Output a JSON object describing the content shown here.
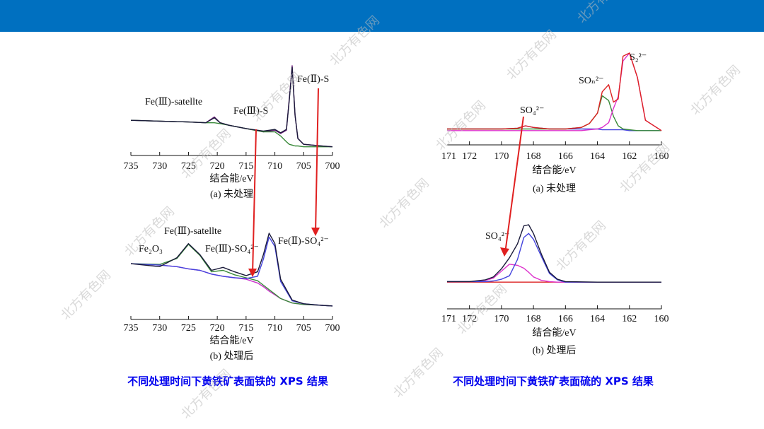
{
  "watermark": "北方有色网",
  "chart_data": [
    {
      "type": "line",
      "xlabel": "结合能/eV",
      "caption": "(a) 未处理",
      "xlim": [
        735,
        700
      ],
      "xticks": [
        735,
        730,
        725,
        720,
        715,
        710,
        705,
        700
      ],
      "annotations": [
        "Fe(Ⅲ)-satellte",
        "Fe(Ⅲ)-S",
        "Fe(Ⅱ)-S"
      ],
      "x": [
        735,
        730,
        725,
        722,
        720.5,
        719.5,
        718,
        715,
        712,
        710,
        709,
        708,
        707.5,
        707,
        706.5,
        706,
        705,
        702,
        700
      ],
      "series": [
        {
          "color": "#6a1b7a",
          "values": [
            34,
            33,
            32,
            31,
            38,
            31,
            28,
            24,
            20,
            22,
            18,
            22,
            60,
            100,
            40,
            12,
            5,
            3,
            2
          ]
        },
        {
          "color": "#3a8a3a",
          "values": [
            34,
            33,
            32,
            31,
            31,
            30,
            28,
            24,
            20,
            20,
            15,
            8,
            5,
            4,
            3,
            3,
            2,
            2,
            2
          ]
        },
        {
          "color": "#1a1a3a",
          "values": [
            34,
            33,
            32,
            31,
            37,
            31,
            28,
            24,
            21,
            23,
            19,
            23,
            58,
            98,
            40,
            12,
            5,
            3,
            2
          ]
        }
      ]
    },
    {
      "type": "line",
      "xlabel": "结合能/eV",
      "caption": "(b) 处理后",
      "xlim": [
        735,
        700
      ],
      "xticks": [
        735,
        730,
        725,
        720,
        715,
        710,
        705,
        700
      ],
      "annotations": [
        "Fe(Ⅲ)-satellte",
        "Fe₂O₃",
        "Fe(Ⅲ)-SO₄²⁻",
        "Fe(Ⅱ)-SO₄²⁻"
      ],
      "x": [
        735,
        730,
        727,
        725,
        723,
        721,
        719,
        717,
        715,
        713,
        712,
        711,
        710,
        709,
        707,
        705,
        702,
        700
      ],
      "series": [
        {
          "color": "#cc33cc",
          "values": [
            59,
            57,
            55,
            52,
            50,
            45,
            42,
            40,
            38,
            33,
            28,
            22,
            17,
            12,
            6,
            4,
            3,
            2
          ]
        },
        {
          "color": "#3a8a3a",
          "values": [
            59,
            58,
            66,
            85,
            70,
            48,
            50,
            44,
            40,
            36,
            30,
            24,
            18,
            12,
            6,
            4,
            3,
            2
          ]
        },
        {
          "color": "#4444dd",
          "values": [
            59,
            57,
            55,
            52,
            50,
            45,
            42,
            40,
            39,
            42,
            65,
            95,
            82,
            35,
            9,
            5,
            3,
            2
          ]
        },
        {
          "color": "#1a1a3a",
          "values": [
            59,
            55,
            67,
            86,
            71,
            50,
            54,
            48,
            43,
            48,
            71,
            100,
            86,
            38,
            10,
            5,
            3,
            2
          ]
        }
      ]
    },
    {
      "type": "line",
      "xlabel": "结合能/eV",
      "caption": "(a) 未处理",
      "extra_label": "171",
      "xlim": [
        173.4,
        160
      ],
      "xticks": [
        172,
        170,
        168,
        166,
        164,
        162,
        160
      ],
      "annotations": [
        "SO₄²⁻",
        "SOₙ²⁻",
        "S₂²⁻"
      ],
      "x": [
        173.4,
        172,
        170,
        169,
        168.5,
        168,
        167,
        166,
        165,
        164.5,
        164,
        163.7,
        163.3,
        163,
        162.7,
        162.4,
        162,
        161.5,
        161,
        160
      ],
      "series": [
        {
          "color": "#4444dd",
          "values": [
            4,
            4,
            4,
            5,
            8,
            6,
            4,
            4,
            4,
            4,
            4,
            3,
            3,
            3,
            3,
            3,
            2,
            2,
            2,
            2
          ]
        },
        {
          "color": "#3a8a3a",
          "values": [
            4,
            4,
            4,
            4,
            4,
            4,
            4,
            4,
            6,
            11,
            24,
            46,
            40,
            20,
            8,
            4,
            3,
            2,
            2,
            2
          ]
        },
        {
          "color": "#dd33cc",
          "values": [
            2,
            2,
            2,
            2,
            2,
            2,
            2,
            2,
            2,
            3,
            4,
            6,
            12,
            30,
            45,
            90,
            100,
            69,
            15,
            2
          ]
        },
        {
          "color": "#dd2222",
          "values": [
            4,
            4,
            4,
            5,
            8,
            6,
            4,
            4,
            6,
            11,
            24,
            51,
            60,
            38,
            42,
            96,
            100,
            69,
            15,
            2
          ]
        }
      ]
    },
    {
      "type": "line",
      "xlabel": "结合能/eV",
      "caption": "(b) 处理后",
      "extra_label": "171",
      "xlim": [
        173.4,
        160
      ],
      "xticks": [
        172,
        170,
        168,
        166,
        164,
        162,
        160
      ],
      "annotations": [
        "SO₄²⁻"
      ],
      "x": [
        173.4,
        172,
        171,
        170.5,
        170,
        169.5,
        169,
        168.6,
        168.3,
        168,
        167.5,
        167,
        166.5,
        166,
        164,
        160
      ],
      "series": [
        {
          "color": "#dd2222",
          "values": [
            1,
            1,
            1,
            1,
            1,
            1,
            1,
            1,
            1,
            1,
            1,
            1,
            1,
            1,
            1,
            1
          ]
        },
        {
          "color": "#dd33cc",
          "values": [
            2,
            2,
            4,
            8,
            20,
            32,
            30,
            25,
            18,
            10,
            4,
            2,
            1,
            1,
            1,
            1
          ]
        },
        {
          "color": "#4444dd",
          "values": [
            2,
            2,
            2,
            3,
            6,
            12,
            40,
            78,
            85,
            75,
            45,
            16,
            5,
            1,
            1,
            1
          ]
        },
        {
          "color": "#1a1a3a",
          "values": [
            2,
            2,
            5,
            10,
            24,
            43,
            67,
            98,
            100,
            85,
            49,
            18,
            6,
            2,
            1,
            1
          ]
        }
      ]
    }
  ],
  "titles": [
    "不同处理时间下黄铁矿表面铁的 XPS 结果",
    "不同处理时间下黄铁矿表面硫的 XPS 结果"
  ]
}
